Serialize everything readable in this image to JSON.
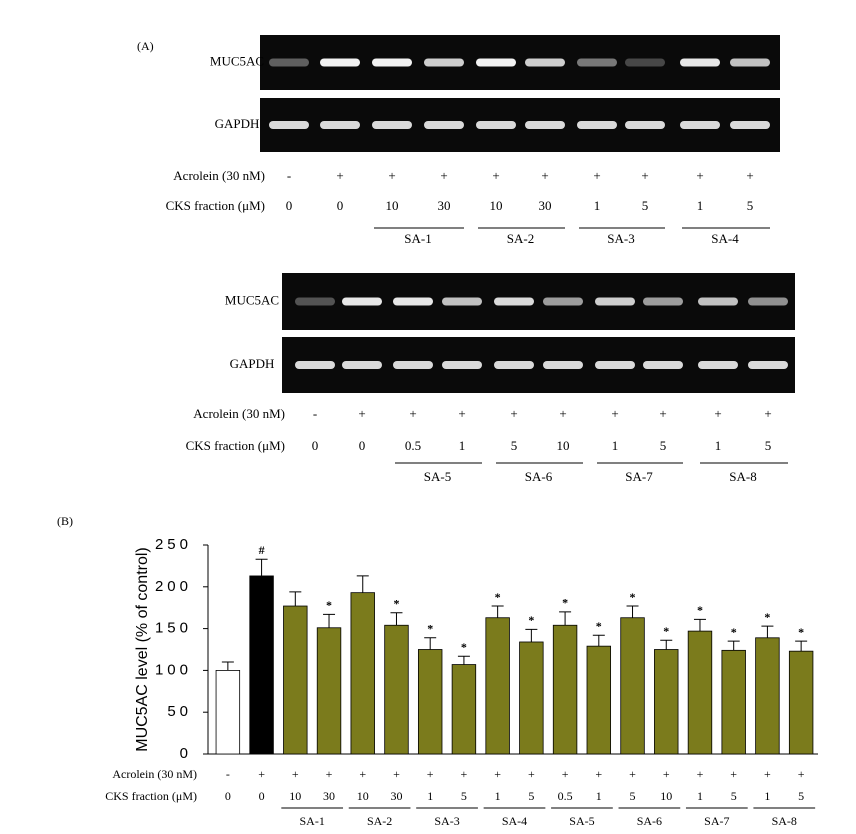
{
  "panel_a": {
    "label": "(A)",
    "blots": [
      {
        "rows": [
          "MUC5AC",
          "GAPDH"
        ],
        "acrolein_label": "Acrolein (30 nM)",
        "acrolein": [
          "-",
          "+",
          "+",
          "+",
          "+",
          "+",
          "+",
          "+",
          "+",
          "+"
        ],
        "cks_label": "CKS fraction (μM)",
        "cks": [
          "0",
          "0",
          "10",
          "30",
          "10",
          "30",
          "1",
          "5",
          "1",
          "5"
        ],
        "groups": [
          "SA-1",
          "SA-2",
          "SA-3",
          "SA-4"
        ]
      },
      {
        "rows": [
          "MUC5AC",
          "GAPDH"
        ],
        "acrolein_label": "Acrolein (30 nM)",
        "acrolein": [
          "-",
          "+",
          "+",
          "+",
          "+",
          "+",
          "+",
          "+",
          "+",
          "+"
        ],
        "cks_label": "CKS fraction (μM)",
        "cks": [
          "0",
          "0",
          "0.5",
          "1",
          "5",
          "10",
          "1",
          "5",
          "1",
          "5"
        ],
        "groups": [
          "SA-5",
          "SA-6",
          "SA-7",
          "SA-8"
        ]
      }
    ]
  },
  "panel_b": {
    "label": "(B)"
  },
  "chart_data": {
    "type": "bar",
    "y_label": "MUC5AC level (% of control)",
    "acrolein_label": "Acrolein (30 nM)",
    "acrolein": [
      "-",
      "+",
      "+",
      "+",
      "+",
      "+",
      "+",
      "+",
      "+",
      "+",
      "+",
      "+",
      "+",
      "+",
      "+",
      "+",
      "+",
      "+"
    ],
    "cks_label": "CKS fraction (μM)",
    "categories": [
      "0",
      "0",
      "10",
      "30",
      "10",
      "30",
      "1",
      "5",
      "1",
      "5",
      "0.5",
      "1",
      "5",
      "10",
      "1",
      "5",
      "1",
      "5"
    ],
    "groups": [
      "SA-1",
      "SA-2",
      "SA-3",
      "SA-4",
      "SA-5",
      "SA-6",
      "SA-7",
      "SA-8"
    ],
    "values": [
      100,
      213,
      177,
      151,
      193,
      154,
      125,
      107,
      163,
      134,
      154,
      129,
      163,
      125,
      147,
      124,
      139,
      123
    ],
    "errors": [
      10,
      20,
      17,
      16,
      20,
      15,
      14,
      10,
      14,
      15,
      16,
      13,
      14,
      11,
      14,
      11,
      14,
      12
    ],
    "colors": [
      "#ffffff",
      "#000000",
      "#7b7b1c",
      "#7b7b1c",
      "#7b7b1c",
      "#7b7b1c",
      "#7b7b1c",
      "#7b7b1c",
      "#7b7b1c",
      "#7b7b1c",
      "#7b7b1c",
      "#7b7b1c",
      "#7b7b1c",
      "#7b7b1c",
      "#7b7b1c",
      "#7b7b1c",
      "#7b7b1c",
      "#7b7b1c"
    ],
    "annotations": [
      null,
      "#",
      null,
      "*",
      null,
      "*",
      "*",
      "*",
      "*",
      "*",
      "*",
      "*",
      "*",
      "*",
      "*",
      "*",
      "*",
      "*"
    ],
    "ylim": [
      0,
      250
    ],
    "yticks": [
      0,
      50,
      100,
      150,
      200,
      250
    ],
    "grid": false
  }
}
